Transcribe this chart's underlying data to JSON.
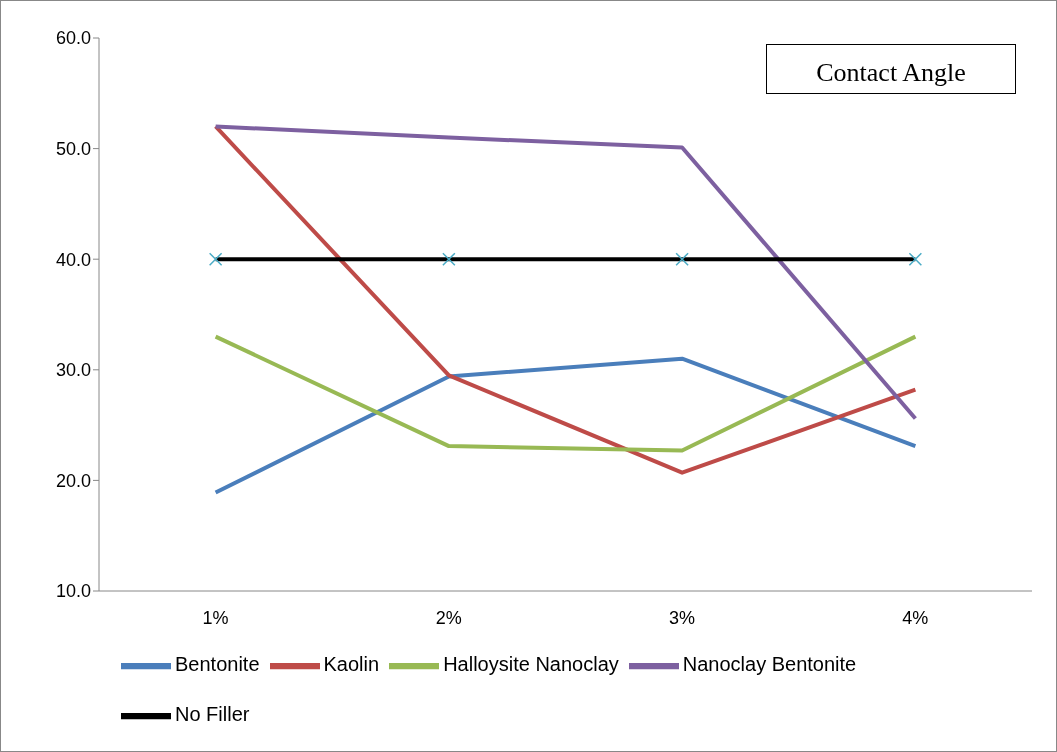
{
  "chart_data": {
    "type": "line",
    "title": "Contact Angle",
    "categories": [
      "1%",
      "2%",
      "3%",
      "4%"
    ],
    "series": [
      {
        "name": "Bentonite",
        "color": "#4a7ebb",
        "values": [
          18.9,
          29.4,
          31.0,
          23.1
        ]
      },
      {
        "name": "Kaolin",
        "color": "#be4b48",
        "values": [
          52.0,
          29.5,
          20.7,
          28.2
        ]
      },
      {
        "name": "Halloysite Nanoclay",
        "color": "#98b954",
        "values": [
          33.0,
          23.1,
          22.7,
          33.0
        ]
      },
      {
        "name": "Nanoclay Bentonite",
        "color": "#7d60a0",
        "values": [
          52.0,
          51.0,
          50.1,
          25.6
        ]
      },
      {
        "name": "No Filler",
        "color": "#000000",
        "values": [
          40.0,
          40.0,
          40.0,
          40.0
        ],
        "marker": "cross"
      }
    ],
    "ylim": [
      10,
      60
    ],
    "yticks": [
      {
        "value": 10,
        "label": "10.0"
      },
      {
        "value": 20,
        "label": "20.0"
      },
      {
        "value": 30,
        "label": "30.0"
      },
      {
        "value": 40,
        "label": "40.0"
      },
      {
        "value": 50,
        "label": "50.0"
      },
      {
        "value": 60,
        "label": "60.0"
      }
    ],
    "grid": false,
    "legend": "bottom",
    "marker": "none",
    "line_style": "solid"
  }
}
